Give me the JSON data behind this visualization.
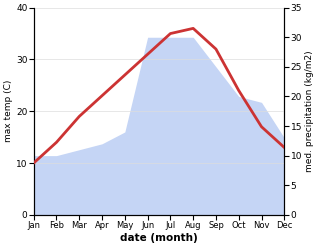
{
  "months": [
    "Jan",
    "Feb",
    "Mar",
    "Apr",
    "May",
    "Jun",
    "Jul",
    "Aug",
    "Sep",
    "Oct",
    "Nov",
    "Dec"
  ],
  "month_indices": [
    1,
    2,
    3,
    4,
    5,
    6,
    7,
    8,
    9,
    10,
    11,
    12
  ],
  "temp_max": [
    10,
    14,
    19,
    23,
    27,
    31,
    35,
    36,
    32,
    24,
    17,
    13
  ],
  "precipitation": [
    10,
    10,
    11,
    12,
    14,
    30,
    30,
    30,
    25,
    20,
    19,
    13
  ],
  "temp_color": "#cc3333",
  "precip_fill_color": "#c5d5f5",
  "bg_color": "#ffffff",
  "xlabel": "date (month)",
  "ylabel_left": "max temp (C)",
  "ylabel_right": "med. precipitation (kg/m2)",
  "ylim_left": [
    0,
    40
  ],
  "ylim_right": [
    0,
    35
  ],
  "yticks_left": [
    0,
    10,
    20,
    30,
    40
  ],
  "yticks_right": [
    0,
    5,
    10,
    15,
    20,
    25,
    30,
    35
  ],
  "temp_linewidth": 2.0
}
